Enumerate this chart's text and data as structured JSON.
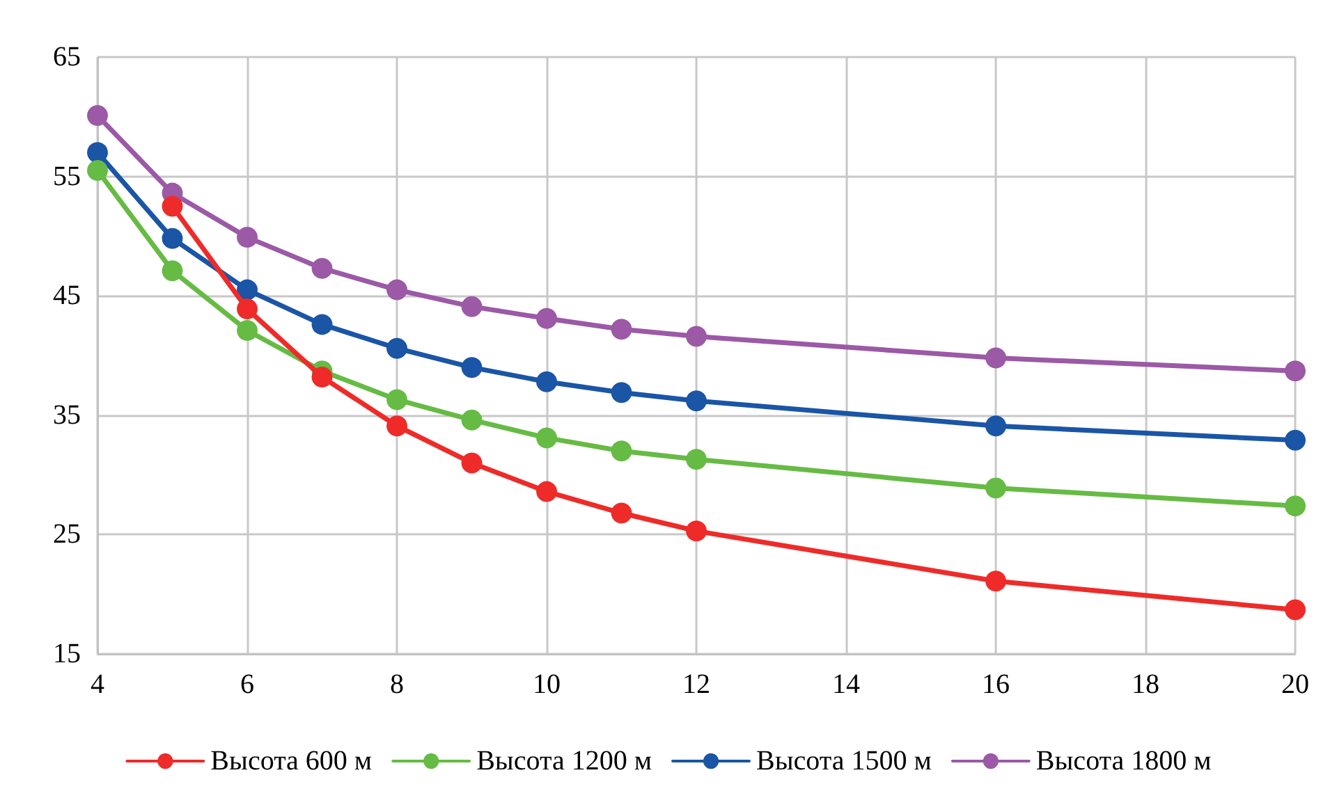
{
  "chart_data": {
    "type": "line",
    "x": [
      4,
      5,
      6,
      7,
      8,
      9,
      10,
      11,
      12,
      16,
      20
    ],
    "xlim": [
      4,
      20
    ],
    "xticks": [
      4,
      6,
      8,
      10,
      12,
      14,
      16,
      18,
      20
    ],
    "ylim": [
      15,
      65
    ],
    "yticks": [
      15,
      25,
      35,
      45,
      55,
      65
    ],
    "grid": true,
    "legend": "bottom",
    "marker": "circle",
    "line_style": "solid",
    "series": [
      {
        "name": "Высота 600 м",
        "color": "#ee2b29",
        "values": [
          null,
          52.5,
          43.9,
          38.2,
          34.1,
          31.0,
          28.6,
          26.8,
          25.3,
          21.1,
          18.7
        ]
      },
      {
        "name": "Высота 1200 м",
        "color": "#66bb44",
        "values": [
          55.5,
          47.1,
          42.1,
          38.7,
          36.3,
          34.6,
          33.1,
          32.0,
          31.3,
          28.9,
          27.4
        ]
      },
      {
        "name": "Высота 1500 м",
        "color": "#1a55a6",
        "values": [
          57.0,
          49.8,
          45.5,
          42.6,
          40.6,
          39.0,
          37.8,
          36.9,
          36.2,
          34.1,
          32.9
        ]
      },
      {
        "name": "Высота 1800 м",
        "color": "#9b59a6",
        "values": [
          60.1,
          53.6,
          49.9,
          47.3,
          45.5,
          44.1,
          43.1,
          42.2,
          41.6,
          39.8,
          38.7
        ]
      }
    ]
  }
}
